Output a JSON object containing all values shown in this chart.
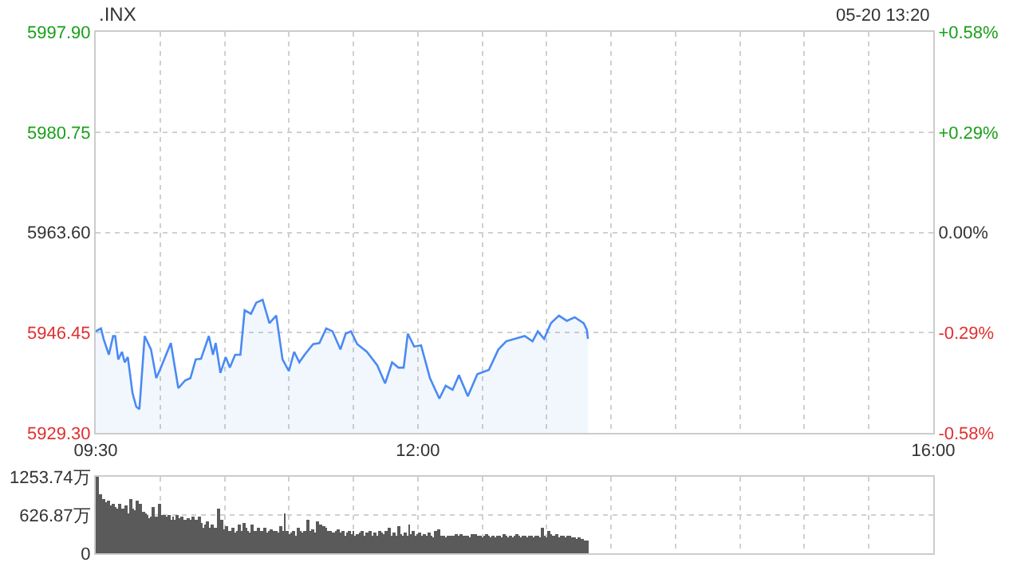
{
  "chart_data": {
    "type": "area",
    "title": ".INX",
    "annotations": [
      "05-20 13:20"
    ],
    "xlim": [
      9.5,
      16
    ],
    "xticks": [
      {
        "value": 9.5,
        "label": "09:30"
      },
      {
        "value": 10,
        "label": null
      },
      {
        "value": 10.5,
        "label": null
      },
      {
        "value": 11,
        "label": null
      },
      {
        "value": 11.5,
        "label": null
      },
      {
        "value": 12,
        "label": "12:00"
      },
      {
        "value": 12.5,
        "label": null
      },
      {
        "value": 13,
        "label": null
      },
      {
        "value": 13.5,
        "label": null
      },
      {
        "value": 14,
        "label": null
      },
      {
        "value": 14.5,
        "label": null
      },
      {
        "value": 15,
        "label": null
      },
      {
        "value": 15.5,
        "label": null
      },
      {
        "value": 16,
        "label": "16:00"
      }
    ],
    "ylim": [
      5929.3,
      5997.9
    ],
    "yticks": [
      {
        "value": 5929.3,
        "label": "5929.30"
      },
      {
        "value": 5946.45,
        "label": "5946.45"
      },
      {
        "value": 5963.6,
        "label": "5963.60"
      },
      {
        "value": 5980.75,
        "label": "5980.75"
      },
      {
        "value": 5997.9,
        "label": "5997.90"
      }
    ],
    "y2lim": [
      -0.5752,
      0.5752
    ],
    "y2ticks": [
      {
        "value": -0.5752,
        "label": "-0.58%"
      },
      {
        "value": -0.2876,
        "label": "-0.29%"
      },
      {
        "value": 0,
        "label": "0.00%"
      },
      {
        "value": 0.2876,
        "label": "+0.29%"
      },
      {
        "value": 0.5752,
        "label": "+0.58%"
      }
    ],
    "y3lim": [
      0,
      1253.74
    ],
    "y3ticks": [
      0,
      {
        "value": 626.87,
        "label": "626.87万"
      },
      {
        "value": 1253.74,
        "label": "1253.74万"
      }
    ],
    "grid": true,
    "marker": "none",
    "line_style": "solid",
    "series": [
      {
        "color": "#4a8af4",
        "x": [
          9.5,
          9.541,
          9.561,
          9.602,
          9.635,
          9.651,
          9.675,
          9.704,
          9.725,
          9.749,
          9.786,
          9.815,
          9.839,
          9.88,
          9.929,
          9.97,
          10.002,
          10.083,
          10.141,
          10.194,
          10.235,
          10.276,
          10.317,
          10.378,
          10.41,
          10.431,
          10.468,
          10.509,
          10.541,
          10.582,
          10.623,
          10.656,
          10.705,
          10.746,
          10.795,
          10.848,
          10.901,
          10.95,
          10.999,
          11.04,
          11.08,
          11.121,
          11.187,
          11.236,
          11.289,
          11.338,
          11.399,
          11.44,
          11.481,
          11.53,
          11.604,
          11.685,
          11.746,
          11.8,
          11.849,
          11.89,
          11.922,
          11.971,
          12.025,
          12.094,
          12.167,
          12.216,
          12.27,
          12.319,
          12.388,
          12.462,
          12.551,
          12.625,
          12.686,
          12.747,
          12.829,
          12.89,
          12.931,
          12.98,
          13.033,
          13.095,
          13.156,
          13.217,
          13.287,
          13.311,
          13.32
        ],
        "values": [
          5946.7,
          5947.2,
          5945.4,
          5942.7,
          5945.9,
          5945.9,
          5941.9,
          5943.2,
          5941.4,
          5942.3,
          5936.1,
          5933.8,
          5933.4,
          5945.9,
          5943.6,
          5938.7,
          5940.3,
          5944.7,
          5937.0,
          5938.3,
          5938.7,
          5941.9,
          5942.0,
          5945.9,
          5942.7,
          5944.7,
          5939.6,
          5942.3,
          5940.5,
          5942.7,
          5942.7,
          5950.3,
          5949.7,
          5951.6,
          5952.1,
          5948.1,
          5949.4,
          5941.9,
          5939.9,
          5943.2,
          5941.4,
          5942.7,
          5944.5,
          5944.7,
          5947.2,
          5946.7,
          5943.6,
          5946.3,
          5946.7,
          5944.5,
          5943.2,
          5940.9,
          5937.8,
          5941.4,
          5940.5,
          5940.5,
          5946.3,
          5944.1,
          5944.3,
          5938.7,
          5935.2,
          5937.4,
          5936.7,
          5939.2,
          5935.6,
          5939.4,
          5940.1,
          5943.6,
          5945.0,
          5945.4,
          5945.9,
          5945.0,
          5946.7,
          5945.4,
          5948.1,
          5949.4,
          5948.5,
          5949.1,
          5948.1,
          5947.0,
          5945.4
        ]
      },
      {
        "type": "bar",
        "axis": "y3",
        "color": "#5a5a5a",
        "x": [
          9.517,
          9.533,
          9.55,
          9.567,
          9.583,
          9.6,
          9.617,
          9.633,
          9.65,
          9.667,
          9.683,
          9.7,
          9.717,
          9.733,
          9.75,
          9.767,
          9.783,
          9.8,
          9.817,
          9.833,
          9.85,
          9.867,
          9.883,
          9.9,
          9.917,
          9.933,
          9.95,
          9.967,
          9.983,
          10,
          10.017,
          10.033,
          10.05,
          10.067,
          10.083,
          10.1,
          10.117,
          10.133,
          10.15,
          10.167,
          10.183,
          10.2,
          10.217,
          10.233,
          10.25,
          10.267,
          10.283,
          10.3,
          10.317,
          10.333,
          10.35,
          10.367,
          10.383,
          10.4,
          10.417,
          10.433,
          10.45,
          10.467,
          10.483,
          10.5,
          10.517,
          10.533,
          10.55,
          10.567,
          10.583,
          10.6,
          10.617,
          10.633,
          10.65,
          10.667,
          10.683,
          10.7,
          10.717,
          10.733,
          10.75,
          10.767,
          10.783,
          10.8,
          10.817,
          10.833,
          10.85,
          10.867,
          10.883,
          10.9,
          10.917,
          10.933,
          10.95,
          10.967,
          10.983,
          11,
          11.017,
          11.033,
          11.05,
          11.067,
          11.083,
          11.1,
          11.117,
          11.133,
          11.15,
          11.167,
          11.183,
          11.2,
          11.217,
          11.233,
          11.25,
          11.267,
          11.283,
          11.3,
          11.317,
          11.333,
          11.35,
          11.367,
          11.383,
          11.4,
          11.417,
          11.433,
          11.45,
          11.467,
          11.483,
          11.5,
          11.517,
          11.533,
          11.55,
          11.567,
          11.583,
          11.6,
          11.617,
          11.633,
          11.65,
          11.667,
          11.683,
          11.7,
          11.717,
          11.733,
          11.75,
          11.767,
          11.783,
          11.8,
          11.817,
          11.833,
          11.85,
          11.867,
          11.883,
          11.9,
          11.917,
          11.933,
          11.95,
          11.967,
          11.983,
          12,
          12.017,
          12.033,
          12.05,
          12.067,
          12.083,
          12.1,
          12.117,
          12.133,
          12.15,
          12.167,
          12.183,
          12.2,
          12.217,
          12.233,
          12.25,
          12.267,
          12.283,
          12.3,
          12.317,
          12.333,
          12.35,
          12.367,
          12.383,
          12.4,
          12.417,
          12.433,
          12.45,
          12.467,
          12.483,
          12.5,
          12.517,
          12.533,
          12.55,
          12.567,
          12.583,
          12.6,
          12.617,
          12.633,
          12.65,
          12.667,
          12.683,
          12.7,
          12.717,
          12.733,
          12.75,
          12.767,
          12.783,
          12.8,
          12.817,
          12.833,
          12.85,
          12.867,
          12.883,
          12.9,
          12.917,
          12.933,
          12.95,
          12.967,
          12.983,
          13,
          13.017,
          13.033,
          13.05,
          13.067,
          13.083,
          13.1,
          13.117,
          13.133,
          13.15,
          13.167,
          13.183,
          13.2,
          13.217,
          13.233,
          13.25,
          13.267,
          13.283,
          13.3,
          13.317
        ],
        "values": [
          1250,
          980,
          880,
          900,
          840,
          860,
          780,
          820,
          760,
          730,
          800,
          740,
          720,
          780,
          650,
          900,
          740,
          700,
          860,
          720,
          820,
          690,
          660,
          620,
          580,
          610,
          770,
          600,
          590,
          800,
          640,
          620,
          590,
          640,
          560,
          610,
          560,
          620,
          580,
          600,
          560,
          540,
          580,
          560,
          590,
          540,
          560,
          600,
          500,
          420,
          460,
          520,
          420,
          480,
          380,
          420,
          740,
          460,
          540,
          400,
          440,
          360,
          380,
          420,
          340,
          360,
          460,
          380,
          500,
          420,
          360,
          340,
          480,
          380,
          360,
          420,
          360,
          380,
          420,
          340,
          360,
          400,
          360,
          380,
          340,
          440,
          360,
          660,
          380,
          320,
          340,
          360,
          300,
          420,
          380,
          340,
          360,
          340,
          560,
          360,
          400,
          340,
          520,
          440,
          480,
          440,
          420,
          360,
          380,
          320,
          340,
          380,
          400,
          340,
          360,
          300,
          340,
          380,
          320,
          360,
          300,
          320,
          340,
          360,
          300,
          340,
          320,
          360,
          280,
          340,
          300,
          360,
          340,
          320,
          360,
          300,
          420,
          280,
          340,
          300,
          440,
          320,
          300,
          340,
          300,
          480,
          320,
          360,
          300,
          320,
          340,
          300,
          320,
          280,
          340,
          300,
          260,
          360,
          340,
          400,
          300,
          280,
          260,
          300,
          300,
          280,
          300,
          320,
          280,
          320,
          300,
          280,
          300,
          260,
          320,
          280,
          320,
          280,
          300,
          260,
          300,
          320,
          280,
          260,
          300,
          260,
          280,
          300,
          260,
          320,
          280,
          260,
          300,
          260,
          300,
          320,
          280,
          260,
          300,
          280,
          260,
          300,
          280,
          260,
          300,
          280,
          260,
          420,
          300,
          260,
          360,
          320,
          280,
          300,
          320,
          260,
          280,
          300,
          260,
          280,
          300,
          260,
          260,
          240,
          250,
          240,
          230,
          220,
          200
        ]
      }
    ]
  }
}
